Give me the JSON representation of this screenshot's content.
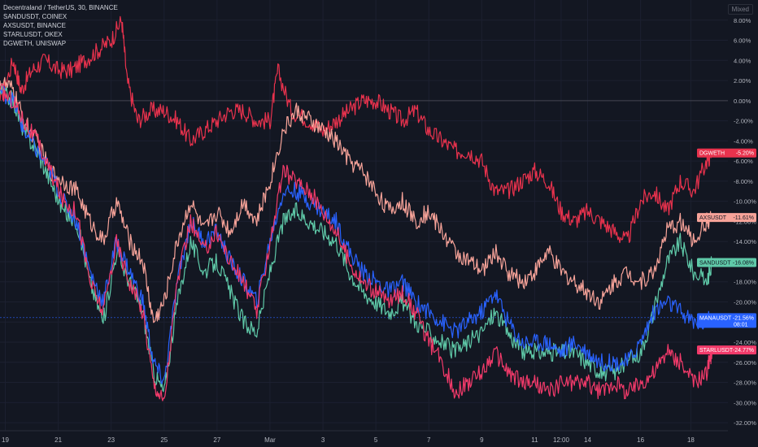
{
  "chart_data": {
    "type": "line",
    "title": "Decentraland / TetherUS, 30, BINANCE",
    "legend": [
      "SANDUSDT, COINEX",
      "AXSUSDT, BINANCE",
      "STARLUSDT, OKEX",
      "DGWETH, UNISWAP"
    ],
    "scale_mode": "Mixed",
    "ylim": [
      -32,
      10
    ],
    "y_ticks": [
      8,
      6,
      4,
      2,
      0,
      -2,
      -4,
      -6,
      -8,
      -10,
      -12,
      -14,
      -16,
      -18,
      -20,
      -22,
      -24,
      -26,
      -28,
      -30,
      -32
    ],
    "y_tick_labels": [
      "8.00%",
      "6.00%",
      "4.00%",
      "2.00%",
      "0.00%",
      "-2.00%",
      "-4.00%",
      "-6.00%",
      "-8.00%",
      "-10.00%",
      "-12.00%",
      "-14.00%",
      "-16.00%",
      "-18.00%",
      "-20.00%",
      "-22.00%",
      "-24.00%",
      "-26.00%",
      "-28.00%",
      "-30.00%",
      "-32.00%"
    ],
    "x_ticks": [
      {
        "t": 0.0,
        "label": "19"
      },
      {
        "t": 2.0,
        "label": "21"
      },
      {
        "t": 4.0,
        "label": "23"
      },
      {
        "t": 6.0,
        "label": "25"
      },
      {
        "t": 8.0,
        "label": "27"
      },
      {
        "t": 10.0,
        "label": "Mar"
      },
      {
        "t": 12.0,
        "label": "3"
      },
      {
        "t": 14.0,
        "label": "5"
      },
      {
        "t": 16.0,
        "label": "7"
      },
      {
        "t": 18.0,
        "label": "9"
      },
      {
        "t": 20.0,
        "label": "11"
      },
      {
        "t": 21.0,
        "label": "12:00"
      },
      {
        "t": 22.0,
        "label": "14"
      },
      {
        "t": 24.0,
        "label": "16"
      },
      {
        "t": 25.9,
        "label": "18"
      }
    ],
    "xlim": [
      -0.2,
      27.3
    ],
    "series": [
      {
        "name": "DGWETH",
        "color": "#e8324d",
        "last_label": "-5.20%",
        "points": [
          [
            -0.2,
            0
          ],
          [
            0.3,
            4
          ],
          [
            0.6,
            1
          ],
          [
            1.0,
            3
          ],
          [
            1.5,
            4
          ],
          [
            2.0,
            3
          ],
          [
            2.5,
            3
          ],
          [
            3.0,
            4
          ],
          [
            3.5,
            5
          ],
          [
            4.0,
            6
          ],
          [
            4.4,
            8
          ],
          [
            4.6,
            2
          ],
          [
            5.0,
            -2
          ],
          [
            5.5,
            -1
          ],
          [
            6.0,
            -1
          ],
          [
            6.5,
            -2
          ],
          [
            7.0,
            -4
          ],
          [
            7.5,
            -3
          ],
          [
            8.0,
            -2
          ],
          [
            8.5,
            -1
          ],
          [
            9.0,
            -1
          ],
          [
            9.5,
            -2
          ],
          [
            10.0,
            -2
          ],
          [
            10.3,
            3
          ],
          [
            10.8,
            -1
          ],
          [
            11.5,
            -2
          ],
          [
            12.0,
            -3
          ],
          [
            12.5,
            -2
          ],
          [
            13.0,
            -1
          ],
          [
            13.5,
            0
          ],
          [
            14.0,
            0
          ],
          [
            14.5,
            -1
          ],
          [
            15.0,
            -2
          ],
          [
            15.5,
            -1
          ],
          [
            16.0,
            -3
          ],
          [
            16.5,
            -4
          ],
          [
            17.0,
            -5
          ],
          [
            17.5,
            -5
          ],
          [
            18.0,
            -6
          ],
          [
            18.5,
            -9
          ],
          [
            19.0,
            -9
          ],
          [
            19.5,
            -8
          ],
          [
            20.0,
            -7
          ],
          [
            20.5,
            -8
          ],
          [
            21.0,
            -11
          ],
          [
            21.5,
            -12
          ],
          [
            22.0,
            -11
          ],
          [
            22.5,
            -12
          ],
          [
            23.0,
            -13
          ],
          [
            23.5,
            -14
          ],
          [
            24.0,
            -10
          ],
          [
            24.5,
            -9
          ],
          [
            25.0,
            -11
          ],
          [
            25.5,
            -8
          ],
          [
            26.0,
            -9
          ],
          [
            26.5,
            -6
          ],
          [
            26.7,
            -5.2
          ]
        ]
      },
      {
        "name": "AXSUSDT",
        "color": "#f7a399",
        "last_label": "-11.61%",
        "points": [
          [
            -0.2,
            2
          ],
          [
            0.3,
            1
          ],
          [
            0.7,
            -2
          ],
          [
            1.2,
            -4
          ],
          [
            1.7,
            -7
          ],
          [
            2.2,
            -8
          ],
          [
            2.7,
            -9
          ],
          [
            3.2,
            -12
          ],
          [
            3.7,
            -14
          ],
          [
            4.2,
            -10
          ],
          [
            4.7,
            -14
          ],
          [
            5.2,
            -16
          ],
          [
            5.6,
            -22
          ],
          [
            6.0,
            -20
          ],
          [
            6.5,
            -14
          ],
          [
            7.0,
            -10
          ],
          [
            7.5,
            -13
          ],
          [
            8.0,
            -11
          ],
          [
            8.5,
            -13
          ],
          [
            9.0,
            -10
          ],
          [
            9.5,
            -12
          ],
          [
            10.0,
            -8
          ],
          [
            10.5,
            -3
          ],
          [
            11.0,
            -1
          ],
          [
            11.5,
            -2
          ],
          [
            12.0,
            -3
          ],
          [
            12.5,
            -4
          ],
          [
            13.0,
            -6
          ],
          [
            13.5,
            -7
          ],
          [
            14.0,
            -9
          ],
          [
            14.5,
            -11
          ],
          [
            15.0,
            -10
          ],
          [
            15.5,
            -12
          ],
          [
            16.0,
            -11
          ],
          [
            16.5,
            -13
          ],
          [
            17.0,
            -15
          ],
          [
            17.5,
            -16
          ],
          [
            18.0,
            -17
          ],
          [
            18.5,
            -15
          ],
          [
            19.0,
            -17
          ],
          [
            19.5,
            -18
          ],
          [
            20.0,
            -17
          ],
          [
            20.5,
            -15
          ],
          [
            21.0,
            -17
          ],
          [
            21.5,
            -18
          ],
          [
            22.0,
            -19
          ],
          [
            22.5,
            -20
          ],
          [
            23.0,
            -18
          ],
          [
            23.5,
            -17
          ],
          [
            24.0,
            -18
          ],
          [
            24.5,
            -17
          ],
          [
            25.0,
            -13
          ],
          [
            25.5,
            -12
          ],
          [
            26.0,
            -14
          ],
          [
            26.5,
            -12
          ],
          [
            26.7,
            -11.61
          ]
        ]
      },
      {
        "name": "SANDUSDT",
        "color": "#5fc9a8",
        "last_label": "-16.08%",
        "points": [
          [
            -0.2,
            1
          ],
          [
            0.3,
            0
          ],
          [
            0.7,
            -3
          ],
          [
            1.2,
            -5
          ],
          [
            1.7,
            -8
          ],
          [
            2.2,
            -11
          ],
          [
            2.7,
            -12
          ],
          [
            3.2,
            -18
          ],
          [
            3.7,
            -22
          ],
          [
            4.2,
            -15
          ],
          [
            4.7,
            -18
          ],
          [
            5.2,
            -21
          ],
          [
            5.6,
            -27
          ],
          [
            6.0,
            -29
          ],
          [
            6.5,
            -20
          ],
          [
            7.0,
            -14
          ],
          [
            7.5,
            -17
          ],
          [
            8.0,
            -16
          ],
          [
            8.5,
            -19
          ],
          [
            9.0,
            -22
          ],
          [
            9.5,
            -23
          ],
          [
            10.0,
            -17
          ],
          [
            10.5,
            -12
          ],
          [
            11.0,
            -11
          ],
          [
            11.5,
            -12
          ],
          [
            12.0,
            -13
          ],
          [
            12.5,
            -14
          ],
          [
            13.0,
            -17
          ],
          [
            13.5,
            -19
          ],
          [
            14.0,
            -20
          ],
          [
            14.5,
            -21
          ],
          [
            15.0,
            -20
          ],
          [
            15.5,
            -22
          ],
          [
            16.0,
            -23
          ],
          [
            16.5,
            -24
          ],
          [
            17.0,
            -25
          ],
          [
            17.5,
            -24
          ],
          [
            18.0,
            -23
          ],
          [
            18.5,
            -21
          ],
          [
            19.0,
            -23
          ],
          [
            19.5,
            -25
          ],
          [
            20.0,
            -25
          ],
          [
            20.5,
            -25
          ],
          [
            21.0,
            -25
          ],
          [
            21.5,
            -25
          ],
          [
            22.0,
            -26
          ],
          [
            22.5,
            -27
          ],
          [
            23.0,
            -27
          ],
          [
            23.5,
            -26
          ],
          [
            24.0,
            -25
          ],
          [
            24.5,
            -21
          ],
          [
            25.0,
            -16
          ],
          [
            25.5,
            -14
          ],
          [
            26.0,
            -17
          ],
          [
            26.5,
            -18
          ],
          [
            26.7,
            -16.08
          ]
        ]
      },
      {
        "name": "MANAUSDT",
        "color": "#2962ff",
        "last_label": "-21.56%",
        "sub_label": "08:01",
        "points": [
          [
            -0.2,
            1
          ],
          [
            0.3,
            0
          ],
          [
            0.7,
            -3
          ],
          [
            1.2,
            -5
          ],
          [
            1.7,
            -7
          ],
          [
            2.2,
            -10
          ],
          [
            2.7,
            -12
          ],
          [
            3.2,
            -17
          ],
          [
            3.7,
            -20
          ],
          [
            4.2,
            -14
          ],
          [
            4.7,
            -17
          ],
          [
            5.2,
            -20
          ],
          [
            5.6,
            -26
          ],
          [
            6.0,
            -28
          ],
          [
            6.5,
            -18
          ],
          [
            7.0,
            -12
          ],
          [
            7.5,
            -14
          ],
          [
            8.0,
            -13
          ],
          [
            8.5,
            -16
          ],
          [
            9.0,
            -18
          ],
          [
            9.5,
            -20
          ],
          [
            10.0,
            -14
          ],
          [
            10.5,
            -9
          ],
          [
            11.0,
            -9
          ],
          [
            11.5,
            -10
          ],
          [
            12.0,
            -11
          ],
          [
            12.5,
            -12
          ],
          [
            13.0,
            -15
          ],
          [
            13.5,
            -17
          ],
          [
            14.0,
            -18
          ],
          [
            14.5,
            -19
          ],
          [
            15.0,
            -18
          ],
          [
            15.5,
            -20
          ],
          [
            16.0,
            -21
          ],
          [
            16.5,
            -22
          ],
          [
            17.0,
            -23
          ],
          [
            17.5,
            -22
          ],
          [
            18.0,
            -21
          ],
          [
            18.5,
            -19
          ],
          [
            19.0,
            -22
          ],
          [
            19.5,
            -24
          ],
          [
            20.0,
            -24
          ],
          [
            20.5,
            -24
          ],
          [
            21.0,
            -25
          ],
          [
            21.5,
            -24
          ],
          [
            22.0,
            -25
          ],
          [
            22.5,
            -26
          ],
          [
            23.0,
            -26
          ],
          [
            23.5,
            -26
          ],
          [
            24.0,
            -24
          ],
          [
            24.5,
            -21
          ],
          [
            25.0,
            -20
          ],
          [
            25.5,
            -21
          ],
          [
            26.0,
            -22
          ],
          [
            26.5,
            -22
          ],
          [
            26.7,
            -21.56
          ]
        ]
      },
      {
        "name": "STARLUSDT",
        "color": "#f23a6a",
        "last_label": "-24.77%",
        "points": [
          [
            -0.2,
            1
          ],
          [
            0.3,
            0
          ],
          [
            0.7,
            -2
          ],
          [
            1.2,
            -4
          ],
          [
            1.7,
            -7
          ],
          [
            2.2,
            -10
          ],
          [
            2.7,
            -11
          ],
          [
            3.2,
            -18
          ],
          [
            3.7,
            -21
          ],
          [
            4.2,
            -14
          ],
          [
            4.7,
            -18
          ],
          [
            5.2,
            -21
          ],
          [
            5.6,
            -28
          ],
          [
            6.0,
            -30
          ],
          [
            6.5,
            -18
          ],
          [
            7.0,
            -12
          ],
          [
            7.5,
            -15
          ],
          [
            8.0,
            -13
          ],
          [
            8.5,
            -16
          ],
          [
            9.0,
            -18
          ],
          [
            9.5,
            -21
          ],
          [
            10.0,
            -14
          ],
          [
            10.5,
            -7
          ],
          [
            11.0,
            -8
          ],
          [
            11.5,
            -9
          ],
          [
            12.0,
            -11
          ],
          [
            12.5,
            -13
          ],
          [
            13.0,
            -16
          ],
          [
            13.5,
            -18
          ],
          [
            14.0,
            -19
          ],
          [
            14.5,
            -20
          ],
          [
            15.0,
            -19
          ],
          [
            15.5,
            -21
          ],
          [
            16.0,
            -24
          ],
          [
            16.5,
            -26
          ],
          [
            17.0,
            -29
          ],
          [
            17.5,
            -28
          ],
          [
            18.0,
            -27
          ],
          [
            18.5,
            -25
          ],
          [
            19.0,
            -27
          ],
          [
            19.5,
            -28
          ],
          [
            20.0,
            -28
          ],
          [
            20.5,
            -29
          ],
          [
            21.0,
            -28
          ],
          [
            21.5,
            -28
          ],
          [
            22.0,
            -28
          ],
          [
            22.5,
            -29
          ],
          [
            23.0,
            -28
          ],
          [
            23.5,
            -29
          ],
          [
            24.0,
            -28
          ],
          [
            24.5,
            -27
          ],
          [
            25.0,
            -25
          ],
          [
            25.5,
            -26
          ],
          [
            26.0,
            -28
          ],
          [
            26.5,
            -27
          ],
          [
            26.7,
            -24.77
          ]
        ]
      }
    ]
  }
}
